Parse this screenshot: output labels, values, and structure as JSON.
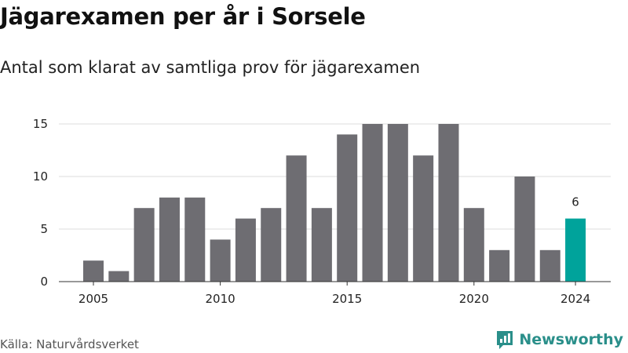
{
  "header": {
    "title": "Jägarexamen per år i Sorsele",
    "subtitle": "Antal som klarat av samtliga prov för jägarexamen"
  },
  "footer": {
    "source": "Källa: Naturvårdsverket",
    "brand": "Newsworthy",
    "brand_icon": "newsworthy-logo-icon"
  },
  "colors": {
    "bar": "#6e6d72",
    "highlight": "#00a39b",
    "grid": "#dddddd",
    "brand": "#2a8f8a"
  },
  "chart_data": {
    "type": "bar",
    "title": "Jägarexamen per år i Sorsele",
    "subtitle": "Antal som klarat av samtliga prov för jägarexamen",
    "xlabel": "",
    "ylabel": "",
    "x": [
      2005,
      2006,
      2007,
      2008,
      2009,
      2010,
      2011,
      2012,
      2013,
      2014,
      2015,
      2016,
      2017,
      2018,
      2019,
      2020,
      2021,
      2022,
      2023,
      2024
    ],
    "values": [
      2,
      1,
      7,
      8,
      8,
      4,
      6,
      7,
      12,
      7,
      14,
      15,
      15,
      12,
      15,
      7,
      3,
      10,
      3,
      6
    ],
    "highlight": {
      "x": 2024,
      "value": 6,
      "label": "6"
    },
    "ylim": [
      0,
      15
    ],
    "yticks": [
      0,
      5,
      10,
      15
    ],
    "xticks": [
      2005,
      2010,
      2015,
      2020,
      2024
    ],
    "grid": true,
    "legend": "none"
  }
}
